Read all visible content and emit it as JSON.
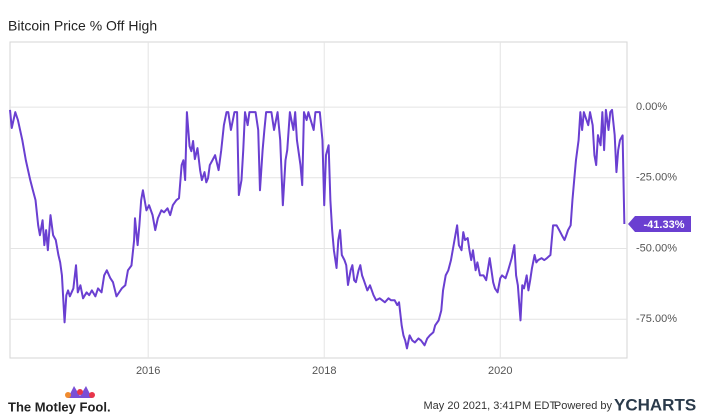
{
  "chart_data": {
    "type": "line",
    "title": "Bitcoin Price % Off High",
    "x": [
      2014.43,
      2014.45,
      2014.49,
      2014.52,
      2014.57,
      2014.61,
      2014.66,
      2014.69,
      2014.72,
      2014.75,
      2014.77,
      2014.8,
      2014.82,
      2014.84,
      2014.86,
      2014.89,
      2014.92,
      2014.95,
      2014.98,
      2015.0,
      2015.02,
      2015.05,
      2015.07,
      2015.09,
      2015.11,
      2015.15,
      2015.18,
      2015.2,
      2015.23,
      2015.26,
      2015.3,
      2015.33,
      2015.36,
      2015.4,
      2015.43,
      2015.47,
      2015.5,
      2015.53,
      2015.57,
      2015.6,
      2015.64,
      2015.67,
      2015.7,
      2015.74,
      2015.77,
      2015.81,
      2015.84,
      2015.85,
      2015.88,
      2015.9,
      2015.92,
      2015.94,
      2015.98,
      2016.01,
      2016.05,
      2016.08,
      2016.11,
      2016.15,
      2016.18,
      2016.22,
      2016.25,
      2016.28,
      2016.32,
      2016.35,
      2016.38,
      2016.4,
      2016.42,
      2016.44,
      2016.47,
      2016.49,
      2016.51,
      2016.53,
      2016.56,
      2016.59,
      2016.61,
      2016.64,
      2016.66,
      2016.68,
      2016.7,
      2016.73,
      2016.76,
      2016.8,
      2016.83,
      2016.86,
      2016.89,
      2016.91,
      2016.94,
      2016.98,
      2017.01,
      2017.03,
      2017.06,
      2017.08,
      2017.1,
      2017.13,
      2017.15,
      2017.18,
      2017.22,
      2017.25,
      2017.27,
      2017.3,
      2017.32,
      2017.34,
      2017.4,
      2017.43,
      2017.47,
      2017.5,
      2017.53,
      2017.56,
      2017.58,
      2017.61,
      2017.65,
      2017.67,
      2017.69,
      2017.73,
      2017.75,
      2017.77,
      2017.8,
      2017.82,
      2017.88,
      2017.9,
      2017.95,
      2017.98,
      2018.0,
      2018.02,
      2018.05,
      2018.07,
      2018.09,
      2018.11,
      2018.14,
      2018.16,
      2018.18,
      2018.2,
      2018.23,
      2018.25,
      2018.27,
      2018.3,
      2018.32,
      2018.34,
      2018.36,
      2018.39,
      2018.41,
      2018.43,
      2018.45,
      2018.49,
      2018.52,
      2018.56,
      2018.59,
      2018.63,
      2018.66,
      2018.69,
      2018.73,
      2018.76,
      2018.8,
      2018.83,
      2018.85,
      2018.88,
      2018.9,
      2018.92,
      2018.94,
      2018.97,
      2019.0,
      2019.03,
      2019.07,
      2019.1,
      2019.14,
      2019.17,
      2019.2,
      2019.24,
      2019.26,
      2019.3,
      2019.33,
      2019.35,
      2019.38,
      2019.41,
      2019.44,
      2019.47,
      2019.49,
      2019.51,
      2019.53,
      2019.56,
      2019.58,
      2019.6,
      2019.63,
      2019.65,
      2019.67,
      2019.69,
      2019.72,
      2019.74,
      2019.77,
      2019.81,
      2019.84,
      2019.88,
      2019.9,
      2019.92,
      2019.94,
      2019.97,
      2020.0,
      2020.02,
      2020.06,
      2020.09,
      2020.13,
      2020.16,
      2020.18,
      2020.2,
      2020.23,
      2020.25,
      2020.27,
      2020.3,
      2020.32,
      2020.34,
      2020.36,
      2020.39,
      2020.41,
      2020.43,
      2020.47,
      2020.5,
      2020.53,
      2020.57,
      2020.6,
      2020.64,
      2020.67,
      2020.7,
      2020.73,
      2020.75,
      2020.77,
      2020.8,
      2020.82,
      2020.84,
      2020.86,
      2020.89,
      2020.91,
      2020.93,
      2020.95,
      2021.0,
      2021.02,
      2021.05,
      2021.07,
      2021.09,
      2021.11,
      2021.14,
      2021.16,
      2021.18,
      2021.2,
      2021.23,
      2021.25,
      2021.27,
      2021.3,
      2021.32,
      2021.34,
      2021.36,
      2021.39,
      2021.41
    ],
    "series": [
      {
        "name": "Bitcoin Price % Off High",
        "color": "#6a3fd1",
        "values": [
          -1,
          -7.4,
          -1.8,
          -4.6,
          -11.7,
          -18.8,
          -25.8,
          -29.4,
          -32.9,
          -41.8,
          -45.3,
          -40,
          -48.8,
          -43.5,
          -50.6,
          -38.2,
          -45.3,
          -47,
          -52.3,
          -54.9,
          -59.5,
          -76.1,
          -66.5,
          -64.8,
          -66.9,
          -64.1,
          -55.9,
          -65.5,
          -63,
          -67.6,
          -65.5,
          -66.5,
          -64.8,
          -66.9,
          -64.1,
          -65.5,
          -59.5,
          -57.7,
          -60.5,
          -61.9,
          -66.9,
          -65.5,
          -64.1,
          -63,
          -57.7,
          -56,
          -47.1,
          -39.3,
          -48.8,
          -41.8,
          -32.9,
          -29.4,
          -36.5,
          -34.7,
          -38.2,
          -43.5,
          -39.3,
          -36.5,
          -37.2,
          -35.8,
          -38.2,
          -34.7,
          -32.9,
          -32.2,
          -20.5,
          -18.8,
          -25.8,
          -1.8,
          -13.8,
          -15.6,
          -12,
          -18.4,
          -14.5,
          -22.3,
          -25.8,
          -23,
          -26.6,
          -25.1,
          -20.5,
          -18.8,
          -17,
          -22.3,
          -15.2,
          -6.4,
          -1.8,
          -1.8,
          -8.1,
          -1.8,
          -1.8,
          -31.1,
          -25.8,
          -15.2,
          -1.8,
          -6.4,
          -1.8,
          -1.8,
          -1.8,
          -8.1,
          -29.4,
          -15.2,
          -8.1,
          -1.8,
          -1.8,
          -8.1,
          -1.8,
          -11.7,
          -34.7,
          -18.8,
          -15.2,
          -1.8,
          -8.1,
          -1.8,
          -11.7,
          -20.5,
          -27.6,
          -1.8,
          -4.6,
          -1.8,
          -8.1,
          -1.8,
          -1.8,
          -11.7,
          -34.7,
          -17,
          -13.5,
          -32.9,
          -43.5,
          -50.6,
          -56.9,
          -47,
          -43.5,
          -52.3,
          -54.1,
          -55.9,
          -62.9,
          -57.7,
          -55.9,
          -61.2,
          -61.9,
          -57.7,
          -55.9,
          -59.5,
          -61.2,
          -64.8,
          -63,
          -66.5,
          -68.3,
          -67.6,
          -68.3,
          -69,
          -67.6,
          -68.3,
          -68.3,
          -70,
          -69,
          -77.2,
          -80.7,
          -82.5,
          -85.3,
          -80.7,
          -82.5,
          -83.2,
          -81.8,
          -82.5,
          -84.2,
          -81.8,
          -80.7,
          -79.6,
          -77.2,
          -75.4,
          -71.9,
          -64.8,
          -59.5,
          -57.7,
          -54.1,
          -48.8,
          -45.3,
          -41.8,
          -48.8,
          -50.6,
          -44.2,
          -47,
          -46.3,
          -50.6,
          -54.1,
          -50.6,
          -57.7,
          -54.9,
          -59.5,
          -59.5,
          -61.2,
          -53.4,
          -57.7,
          -62,
          -64.1,
          -65.5,
          -60.5,
          -59.5,
          -60.5,
          -57.7,
          -53.4,
          -48.8,
          -59.5,
          -63,
          -75.4,
          -63,
          -64.1,
          -59.5,
          -64.8,
          -61.2,
          -57,
          -52.3,
          -54.9,
          -54.1,
          -53.4,
          -54.1,
          -53.4,
          -52.3,
          -41.8,
          -41.8,
          -43.5,
          -45.3,
          -47,
          -45.3,
          -43.5,
          -41.8,
          -32.9,
          -25.8,
          -18.8,
          -11.7,
          -1.8,
          -8.1,
          -1.8,
          -6.4,
          -1.8,
          -6.4,
          -17,
          -20.5,
          -9.9,
          -13.5,
          -1.8,
          -15.2,
          -1,
          -8.1,
          -1.8,
          -1,
          -9.9,
          -23,
          -15.2,
          -11.7,
          -10,
          -41.33
        ]
      }
    ],
    "annotation": {
      "label": "-41.33%",
      "value": -41.33
    },
    "xlim": [
      2014.43,
      2021.44
    ],
    "xticks": [
      2016,
      2018,
      2020
    ],
    "ylim": [
      -88.7,
      23
    ],
    "yticks": [
      {
        "value": 0,
        "label": "0.00%"
      },
      {
        "value": -25,
        "label": "-25.00%"
      },
      {
        "value": -50,
        "label": "-50.00%"
      },
      {
        "value": -75,
        "label": "-75.00%"
      }
    ],
    "grid": true
  },
  "footer": {
    "logo": "The Motley Fool.",
    "timestamp": "May 20 2021, 3:41PM EDT.",
    "powered_by": "Powered by",
    "brand": "YCHARTS"
  }
}
